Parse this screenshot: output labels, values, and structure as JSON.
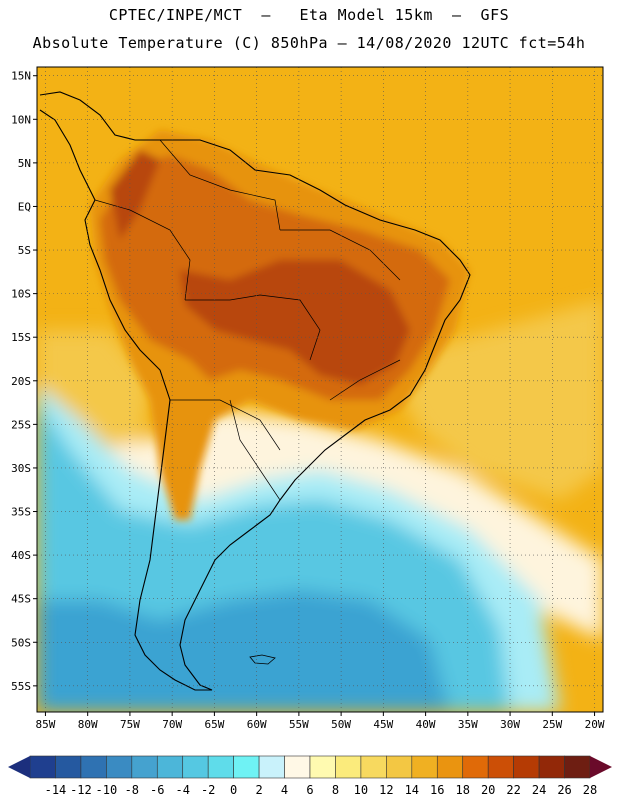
{
  "header": {
    "line1": "CPTEC/INPE/MCT  –   Eta Model 15km  –  GFS",
    "line2": "Absolute Temperature (C) 850hPa – 14/08/2020 12UTC fct=54h"
  },
  "map": {
    "lat_labels": [
      "15N",
      "10N",
      "5N",
      "EQ",
      "5S",
      "10S",
      "15S",
      "20S",
      "25S",
      "30S",
      "35S",
      "40S",
      "45S",
      "50S",
      "55S"
    ],
    "lon_labels": [
      "85W",
      "80W",
      "75W",
      "70W",
      "65W",
      "60W",
      "55W",
      "50W",
      "45W",
      "40W",
      "35W",
      "30W",
      "25W",
      "20W"
    ],
    "lat_range": [
      -58,
      16
    ],
    "lon_range": [
      -86,
      -19
    ]
  },
  "colorbar": {
    "labels": [
      "-14",
      "-12",
      "-10",
      "-8",
      "-6",
      "-4",
      "-2",
      "0",
      "2",
      "4",
      "6",
      "8",
      "10",
      "12",
      "14",
      "16",
      "18",
      "20",
      "22",
      "24",
      "26",
      "28"
    ],
    "colors": [
      "#1f3f8f",
      "#2559a0",
      "#2f72b2",
      "#3a8bc2",
      "#45a2cf",
      "#4cb6d9",
      "#55c8e2",
      "#5fdcea",
      "#6ff2f4",
      "#c9f2fb",
      "#fff8e6",
      "#fffab0",
      "#fbeb7c",
      "#f7d95f",
      "#f3c743",
      "#f0b022",
      "#ea9410",
      "#e06a08",
      "#cc4f06",
      "#b53b04",
      "#922808",
      "#6e1e12"
    ],
    "low_arrow_color": "#1c2f7d",
    "high_arrow_color": "#6a0a2a"
  },
  "palette": {
    "ocean_warm": "#f3b215",
    "ocean_mid": "#f4c84a",
    "cream": "#fef4dd",
    "cool_light": "#a9ecf6",
    "cool": "#58c7e2",
    "cool_deep": "#3aa3d2",
    "land_hot": "#d46a08",
    "land_very_hot": "#b8470a",
    "land_warm": "#e79310"
  }
}
